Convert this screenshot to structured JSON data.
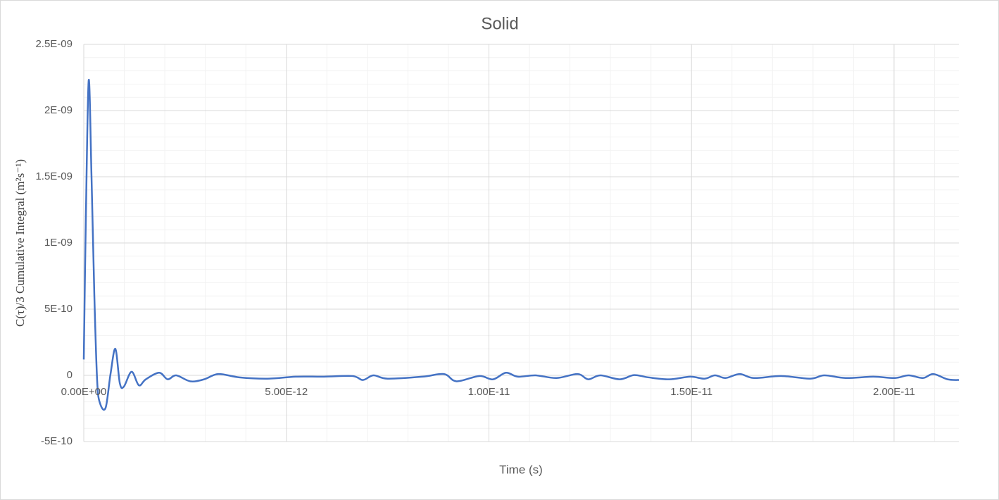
{
  "chart_data": {
    "type": "line",
    "title": "Solid",
    "x_label": "Time (s)",
    "y_label": "C(τ)/3 Cumulative Integral (m²s⁻¹)",
    "x": [
      0,
      5.2e-14,
      1.22e-13,
      1.91e-13,
      2.61e-13,
      3.3e-13,
      4e-13,
      5.39e-13,
      6.6e-13,
      7.8e-13,
      8.9e-13,
      9.9e-13,
      1.18e-12,
      1.36e-12,
      1.53e-12,
      1.86e-12,
      2.07e-12,
      2.28e-12,
      2.63e-12,
      2.97e-12,
      3.32e-12,
      3.84e-12,
      4.54e-12,
      5.23e-12,
      5.93e-12,
      6.63e-12,
      6.89e-12,
      7.15e-12,
      7.5e-12,
      8.36e-12,
      8.89e-12,
      9.2e-12,
      9.76e-12,
      1.01e-11,
      1.042e-11,
      1.071e-11,
      1.115e-11,
      1.167e-11,
      1.219e-11,
      1.245e-11,
      1.275e-11,
      1.323e-11,
      1.358e-11,
      1.393e-11,
      1.445e-11,
      1.497e-11,
      1.532e-11,
      1.558e-11,
      1.584e-11,
      1.619e-11,
      1.654e-11,
      1.723e-11,
      1.793e-11,
      1.828e-11,
      1.88e-11,
      1.949e-11,
      2.002e-11,
      2.036e-11,
      2.071e-11,
      2.097e-11,
      2.132e-11,
      2.16e-11
    ],
    "series": [
      {
        "name": "Solid",
        "color": "#4472c4",
        "values": [
          1.2e-10,
          1.2e-09,
          2.23e-09,
          1.5e-09,
          6e-10,
          -4e-11,
          -2.1e-10,
          -2.45e-10,
          1e-11,
          2e-10,
          -6e-11,
          -8.5e-11,
          2.7e-11,
          -7.5e-11,
          -3e-11,
          2e-11,
          -3e-11,
          0,
          -4.5e-11,
          -3e-11,
          1e-11,
          -1.5e-11,
          -2.5e-11,
          -1e-11,
          -1e-11,
          -5e-12,
          -3.5e-11,
          0,
          -2.5e-11,
          -1e-11,
          1e-11,
          -4.5e-11,
          -5e-12,
          -3e-11,
          2e-11,
          -1e-11,
          0,
          -2e-11,
          1e-11,
          -3e-11,
          0,
          -3e-11,
          2e-12,
          -1.5e-11,
          -3e-11,
          -1e-11,
          -2.5e-11,
          0,
          -2e-11,
          1e-11,
          -2e-11,
          -5e-12,
          -2.5e-11,
          0,
          -2e-11,
          -1e-11,
          -2e-11,
          0,
          -2e-11,
          1e-11,
          -3e-11,
          -3.5e-11
        ]
      }
    ],
    "xlim": [
      0,
      2.16e-11
    ],
    "ylim": [
      -5e-10,
      2.5e-09
    ],
    "xticks": [
      {
        "value": 0,
        "label": "0.00E+00"
      },
      {
        "value": 5e-12,
        "label": "5.00E-12"
      },
      {
        "value": 1e-11,
        "label": "1.00E-11"
      },
      {
        "value": 1.5e-11,
        "label": "1.50E-11"
      },
      {
        "value": 2e-11,
        "label": "2.00E-11"
      }
    ],
    "yticks": [
      {
        "value": -5e-10,
        "label": "-5E-10"
      },
      0,
      {
        "value": 5e-10,
        "label": "5E-10"
      },
      {
        "value": 1e-09,
        "label": "1E-09"
      },
      {
        "value": 1.5e-09,
        "label": "1.5E-09"
      },
      {
        "value": 2e-09,
        "label": "2E-09"
      },
      {
        "value": 2.5e-09,
        "label": "2.5E-09"
      }
    ],
    "grid": true
  }
}
